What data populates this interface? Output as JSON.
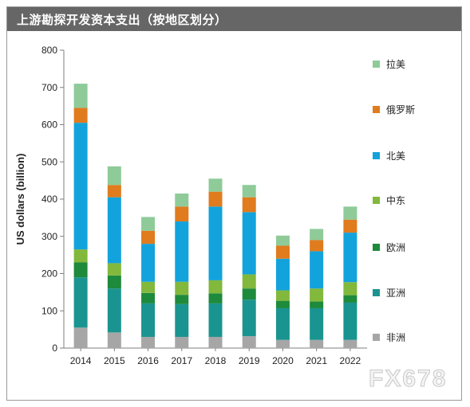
{
  "title": "上游勘探开发资本支出（按地区划分）",
  "watermark": "FX678",
  "chart_data": {
    "type": "bar",
    "stacked": true,
    "categories": [
      "2014",
      "2015",
      "2016",
      "2017",
      "2018",
      "2019",
      "2020",
      "2021",
      "2022"
    ],
    "ylabel": "US dollars (billion)",
    "ylim": [
      0,
      800
    ],
    "yticks": [
      0,
      100,
      200,
      300,
      400,
      500,
      600,
      700,
      800
    ],
    "grid": false,
    "legend_position": "right",
    "series": [
      {
        "name": "非洲",
        "color": "#a6a6a6",
        "values": [
          55,
          42,
          30,
          30,
          30,
          32,
          22,
          22,
          22
        ]
      },
      {
        "name": "亚洲",
        "color": "#1a9490",
        "values": [
          135,
          118,
          90,
          88,
          90,
          98,
          85,
          85,
          100
        ]
      },
      {
        "name": "欧洲",
        "color": "#1e8a3c",
        "values": [
          40,
          35,
          28,
          25,
          27,
          30,
          20,
          18,
          20
        ]
      },
      {
        "name": "中东",
        "color": "#82b83c",
        "values": [
          35,
          33,
          30,
          35,
          35,
          38,
          28,
          35,
          35
        ]
      },
      {
        "name": "北美",
        "color": "#12a3dc",
        "values": [
          340,
          177,
          102,
          162,
          198,
          167,
          85,
          100,
          133
        ]
      },
      {
        "name": "俄罗斯",
        "color": "#e07b1e",
        "values": [
          40,
          33,
          35,
          40,
          40,
          40,
          35,
          30,
          35
        ]
      },
      {
        "name": "拉美",
        "color": "#8ecb98",
        "values": [
          65,
          50,
          37,
          35,
          35,
          33,
          27,
          30,
          35
        ]
      }
    ]
  }
}
